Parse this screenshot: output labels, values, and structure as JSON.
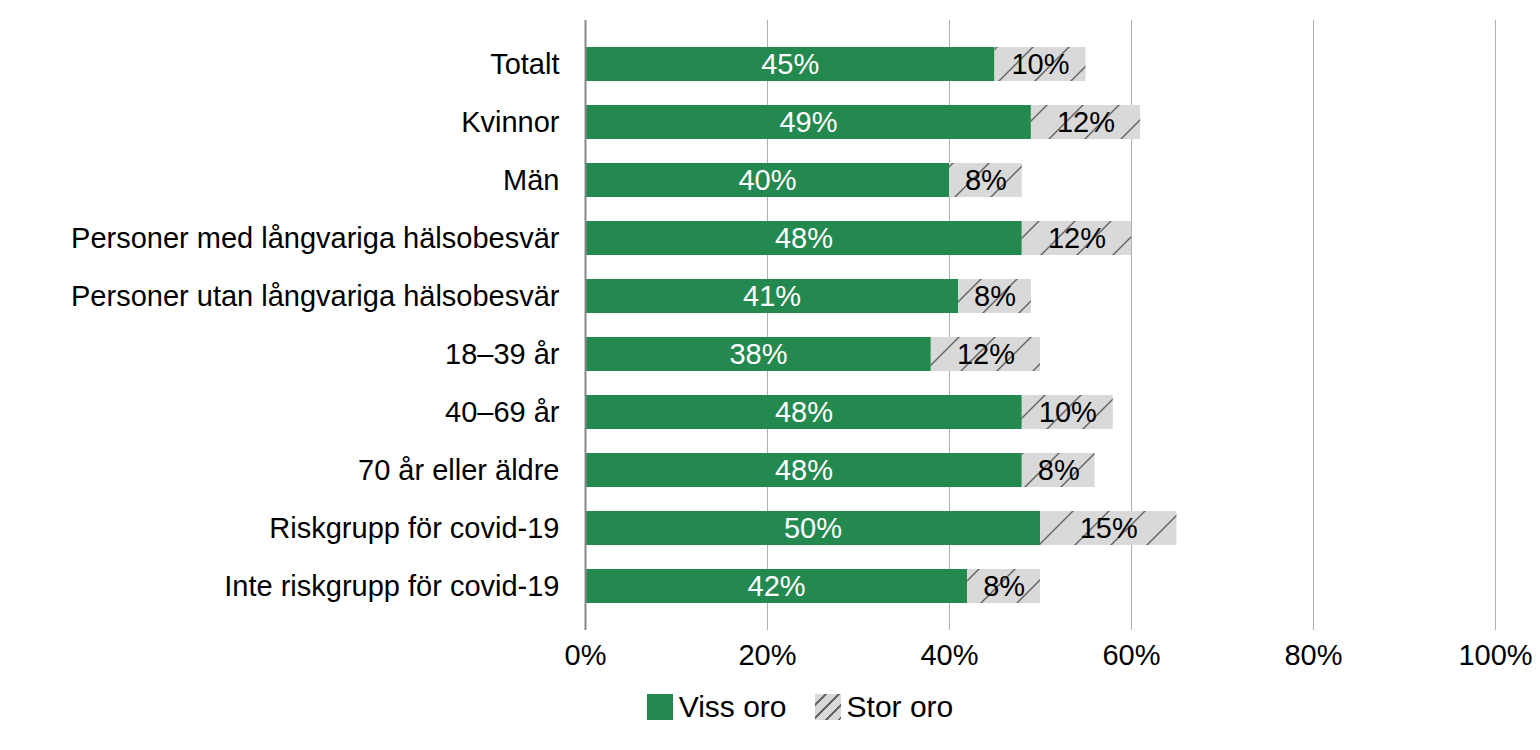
{
  "chart_data": {
    "type": "bar",
    "orientation": "horizontal",
    "stacked": true,
    "data_labels": true,
    "grid": true,
    "legend": "bottom",
    "categories": [
      "Totalt",
      "Kvinnor",
      "Män",
      "Personer med långvariga hälsobesvär",
      "Personer utan långvariga hälsobesvär",
      "18–39 år",
      "40–69 år",
      "70 år eller äldre",
      "Riskgrupp för covid-19",
      "Inte riskgrupp för covid-19"
    ],
    "series": [
      {
        "name": "Viss oro",
        "color": "#24894f",
        "values": [
          45,
          49,
          40,
          48,
          41,
          38,
          48,
          48,
          50,
          42
        ],
        "value_labels": [
          "45%",
          "49%",
          "40%",
          "48%",
          "41%",
          "38%",
          "48%",
          "48%",
          "50%",
          "42%"
        ]
      },
      {
        "name": "Stor oro",
        "color": "#d9d9d9",
        "values": [
          10,
          12,
          8,
          12,
          8,
          12,
          10,
          8,
          15,
          8
        ],
        "value_labels": [
          "10%",
          "12%",
          "8%",
          "12%",
          "8%",
          "12%",
          "10%",
          "8%",
          "15%",
          "8%"
        ]
      }
    ],
    "xlim": [
      0,
      100
    ],
    "xticks": [
      {
        "value": 0,
        "label": "0%"
      },
      {
        "value": 20,
        "label": "20%"
      },
      {
        "value": 40,
        "label": "40%"
      },
      {
        "value": 60,
        "label": "60%"
      },
      {
        "value": 80,
        "label": "80%"
      },
      {
        "value": 100,
        "label": "100%"
      }
    ]
  }
}
